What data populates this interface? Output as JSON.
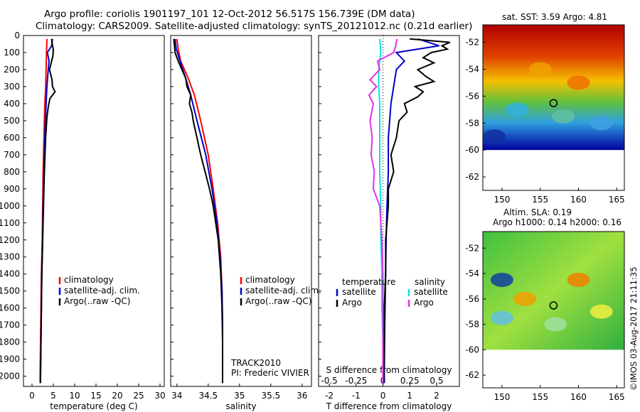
{
  "header": {
    "title_line1": "Argo profile: coriolis 1901197_101 12-Oct-2012 56.517S 156.739E (DM data)",
    "title_line2": "Climatology: CARS2009. Satellite-adjusted climatology: synTS_20121012.nc (0.21d earlier)"
  },
  "map_sst": {
    "title": "sat. SST: 3.59 Argo: 4.81"
  },
  "map_sla": {
    "title_line1": "Altim. SLA: 0.19",
    "title_line2": "Argo h1000: 0.14 h2000: 0.16"
  },
  "stamp": "©IMOS 03-Aug-2017 21:11:35",
  "track": {
    "line1": "TRACK2010",
    "line2": "PI: Frederic VIVIER"
  },
  "colors": {
    "climatology": "#ff0000",
    "satellite": "#0000cc",
    "argo": "#000000",
    "sat_s": "#00e5e5",
    "argo_s": "#e62ee6"
  },
  "chart_data": [
    {
      "type": "line",
      "xlabel": "temperature (deg C)",
      "ylabel": "",
      "xlim": [
        -2,
        31
      ],
      "ylim": [
        2060,
        0
      ],
      "xticks": [
        0,
        5,
        10,
        15,
        20,
        25,
        30
      ],
      "yticks": [
        0,
        100,
        200,
        300,
        400,
        500,
        600,
        700,
        800,
        900,
        1000,
        1100,
        1200,
        1300,
        1400,
        1500,
        1600,
        1700,
        1800,
        1900,
        2000
      ],
      "legend": [
        "climatology",
        "satellite-adj. clim.",
        "Argo(..raw -QC)"
      ],
      "series": [
        {
          "name": "climatology",
          "y": [
            20,
            100,
            200,
            300,
            400,
            600,
            800,
            1000,
            1200,
            1400,
            1600,
            1800,
            2000,
            2040
          ],
          "values": [
            3.5,
            3.4,
            3.3,
            3.2,
            3.0,
            2.8,
            2.6,
            2.5,
            2.4,
            2.2,
            2.1,
            2.0,
            1.9,
            1.9
          ]
        },
        {
          "name": "satellite-adj. clim.",
          "y": [
            20,
            60,
            100,
            150,
            200,
            300,
            400,
            600,
            800,
            1000,
            1200,
            1400,
            1600,
            1800,
            2000,
            2040
          ],
          "values": [
            4.8,
            4.6,
            3.6,
            4.0,
            3.8,
            3.5,
            3.3,
            3.0,
            2.8,
            2.6,
            2.5,
            2.3,
            2.2,
            2.1,
            2.0,
            2.0
          ]
        },
        {
          "name": "Argo(..raw -QC)",
          "y": [
            20,
            60,
            80,
            120,
            160,
            200,
            260,
            300,
            330,
            370,
            420,
            480,
            600,
            800,
            1000,
            1200,
            1400,
            1600,
            1800,
            2000,
            2040
          ],
          "values": [
            4.6,
            4.8,
            5.0,
            4.9,
            4.5,
            4.1,
            4.7,
            4.8,
            5.4,
            4.2,
            3.8,
            3.5,
            3.2,
            2.9,
            2.7,
            2.5,
            2.3,
            2.2,
            2.1,
            2.0,
            2.0
          ]
        }
      ]
    },
    {
      "type": "line",
      "xlabel": "salinity",
      "xlim": [
        33.9,
        36.15
      ],
      "ylim": [
        2060,
        0
      ],
      "xticks": [
        34,
        34.5,
        35,
        35.5,
        36
      ],
      "legend": [
        "climatology",
        "satellite-adj. clim.",
        "Argo(..raw -QC)"
      ],
      "series": [
        {
          "name": "climatology",
          "y": [
            20,
            80,
            150,
            250,
            350,
            500,
            700,
            900,
            1100,
            1300,
            1500,
            1700,
            1900,
            2040
          ],
          "values": [
            34.0,
            34.02,
            34.06,
            34.18,
            34.28,
            34.38,
            34.5,
            34.58,
            34.65,
            34.7,
            34.72,
            34.73,
            34.73,
            34.73
          ]
        },
        {
          "name": "satellite-adj. clim.",
          "y": [
            20,
            80,
            150,
            250,
            350,
            500,
            700,
            900,
            1100,
            1300,
            1500,
            1700,
            1900,
            2040
          ],
          "values": [
            33.97,
            33.99,
            34.05,
            34.14,
            34.22,
            34.32,
            34.46,
            34.56,
            34.64,
            34.69,
            34.72,
            34.73,
            34.73,
            34.73
          ]
        },
        {
          "name": "Argo(..raw -QC)",
          "y": [
            20,
            60,
            100,
            150,
            200,
            250,
            300,
            350,
            400,
            450,
            500,
            600,
            700,
            800,
            900,
            1000,
            1200,
            1400,
            1600,
            1800,
            2000,
            2040
          ],
          "values": [
            33.95,
            33.96,
            33.97,
            34.02,
            34.08,
            34.14,
            34.16,
            34.22,
            34.2,
            34.24,
            34.26,
            34.32,
            34.38,
            34.45,
            34.52,
            34.58,
            34.66,
            34.7,
            34.72,
            34.73,
            34.73,
            34.73
          ]
        }
      ]
    },
    {
      "type": "line",
      "xlabel": "T difference from climatology",
      "xlabel2": "S difference from climatology",
      "xlim": [
        -2.4,
        2.85
      ],
      "x2lim": [
        -0.6,
        0.7125
      ],
      "ylim": [
        2060,
        0
      ],
      "xticks": [
        -2,
        -1,
        0,
        1,
        2
      ],
      "x2ticks": [
        -0.5,
        -0.25,
        0,
        0.25,
        0.5
      ],
      "legend_t": {
        "header": "temperature",
        "items": [
          "satellite",
          "Argo"
        ]
      },
      "legend_s": {
        "header": "salinity",
        "items": [
          "satellite",
          "Argo"
        ]
      },
      "series": [
        {
          "name": "satellite",
          "y": [
            20,
            60,
            100,
            150,
            200,
            300,
            400,
            600,
            800,
            1000,
            1200,
            1400,
            1600,
            1800,
            2000,
            2040
          ],
          "values": [
            1.3,
            2.1,
            0.5,
            0.8,
            0.5,
            0.4,
            0.3,
            0.2,
            0.2,
            0.15,
            0.12,
            0.1,
            0.08,
            0.06,
            0.05,
            0.05
          ]
        },
        {
          "name": "Argo",
          "y": [
            20,
            40,
            60,
            80,
            100,
            130,
            160,
            200,
            240,
            270,
            300,
            330,
            360,
            400,
            450,
            500,
            600,
            700,
            800,
            900,
            1000,
            1200,
            1400,
            1600,
            1800,
            2000,
            2040
          ],
          "values": [
            1.0,
            2.5,
            2.2,
            2.4,
            1.8,
            1.5,
            1.9,
            1.3,
            1.6,
            1.9,
            1.2,
            1.5,
            1.3,
            0.8,
            0.9,
            0.6,
            0.5,
            0.3,
            0.4,
            0.2,
            0.2,
            0.1,
            0.1,
            0.05,
            0.05,
            0.03,
            0.03
          ]
        },
        {
          "name": "satellite",
          "y": [
            20,
            100,
            200,
            300,
            400,
            600,
            800,
            1000,
            1200,
            1400,
            1600,
            1800,
            2000,
            2040
          ],
          "values": [
            -0.03,
            -0.02,
            -0.04,
            -0.04,
            -0.03,
            -0.03,
            -0.03,
            -0.02,
            -0.02,
            -0.01,
            -0.01,
            0.0,
            0.0,
            0.0
          ]
        },
        {
          "name": "Argo",
          "y": [
            20,
            60,
            100,
            150,
            200,
            260,
            300,
            350,
            400,
            500,
            600,
            700,
            800,
            900,
            1000,
            1200,
            1400,
            1600,
            1800,
            2000,
            2040
          ],
          "values": [
            0.13,
            0.12,
            0.1,
            -0.05,
            -0.03,
            -0.12,
            -0.06,
            -0.13,
            -0.09,
            -0.12,
            -0.1,
            -0.11,
            -0.08,
            -0.09,
            -0.03,
            -0.01,
            0.0,
            0.0,
            0.0,
            0.0,
            0.0
          ]
        }
      ]
    },
    {
      "type": "heatmap",
      "title": "sat. SST: 3.59 Argo: 4.81",
      "xlim": [
        147.5,
        166
      ],
      "ylim": [
        -63,
        -50.7
      ],
      "xticks": [
        150,
        155,
        160,
        165
      ],
      "yticks": [
        -52,
        -54,
        -56,
        -58,
        -60,
        -62
      ],
      "marker": {
        "lon": 156.739,
        "lat": -56.517
      }
    },
    {
      "type": "heatmap",
      "title": "Altim. SLA: 0.19",
      "xlim": [
        147.5,
        166
      ],
      "ylim": [
        -63,
        -50.7
      ],
      "xticks": [
        150,
        155,
        160,
        165
      ],
      "yticks": [
        -52,
        -54,
        -56,
        -58,
        -60,
        -62
      ],
      "marker": {
        "lon": 156.739,
        "lat": -56.517
      }
    }
  ]
}
